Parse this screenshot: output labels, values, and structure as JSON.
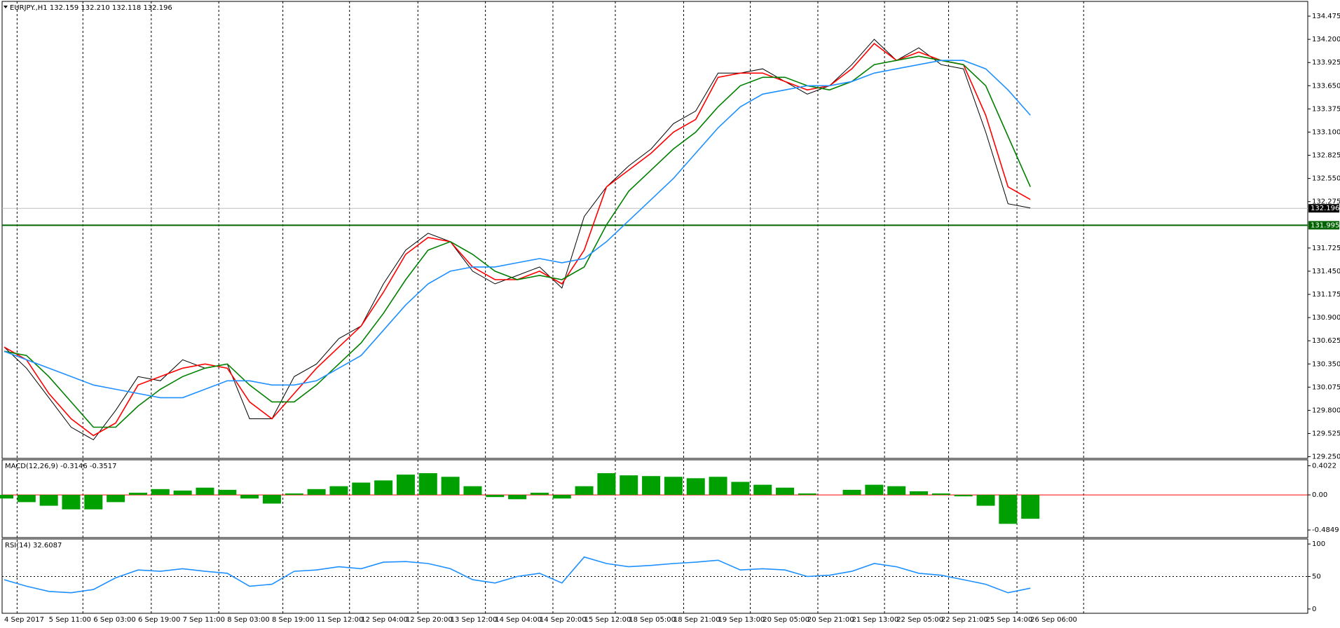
{
  "chart_data": [
    {
      "type": "line",
      "title": "EURJPY.,H1 132.159 132.210 132.118 132.196",
      "categories": [
        "4 Sep 2017",
        null,
        "5 Sep 11:00",
        null,
        "6 Sep 03:00",
        null,
        "6 Sep 19:00",
        null,
        "7 Sep 11:00",
        null,
        "8 Sep 03:00",
        null,
        "8 Sep 19:00",
        null,
        "11 Sep 12:00",
        null,
        "12 Sep 04:00",
        null,
        "12 Sep 20:00",
        null,
        "13 Sep 12:00",
        null,
        "14 Sep 04:00",
        null,
        "14 Sep 20:00",
        null,
        "15 Sep 12:00",
        null,
        "18 Sep 05:00",
        null,
        "18 Sep 21:00",
        null,
        "19 Sep 13:00",
        null,
        "20 Sep 05:00",
        null,
        "20 Sep 21:00",
        null,
        "21 Sep 13:00",
        null,
        "22 Sep 05:00",
        null,
        "22 Sep 21:00",
        null,
        "25 Sep 14:00",
        null,
        "26 Sep 06:00"
      ],
      "series": [
        {
          "color": "#000000",
          "values": [
            130.55,
            130.3,
            129.95,
            129.6,
            129.45,
            129.8,
            130.2,
            130.15,
            130.4,
            130.3,
            130.35,
            129.7,
            129.7,
            130.2,
            130.35,
            130.65,
            130.8,
            131.3,
            131.7,
            131.9,
            131.8,
            131.45,
            131.3,
            131.4,
            131.5,
            131.25,
            132.1,
            132.45,
            132.7,
            132.9,
            133.2,
            133.35,
            133.8,
            133.8,
            133.85,
            133.7,
            133.55,
            133.65,
            133.9,
            134.2,
            133.95,
            134.1,
            133.9,
            133.85,
            133.1,
            132.25,
            132.2
          ]
        },
        {
          "color": "#ff0000",
          "values": [
            130.55,
            130.4,
            130.0,
            129.7,
            129.5,
            129.65,
            130.1,
            130.2,
            130.3,
            130.35,
            130.3,
            129.9,
            129.7,
            130.0,
            130.3,
            130.55,
            130.8,
            131.2,
            131.65,
            131.85,
            131.8,
            131.5,
            131.35,
            131.35,
            131.45,
            131.3,
            131.7,
            132.45,
            132.65,
            132.85,
            133.1,
            133.25,
            133.75,
            133.8,
            133.8,
            133.7,
            133.6,
            133.65,
            133.85,
            134.15,
            133.95,
            134.05,
            133.95,
            133.9,
            133.3,
            132.45,
            132.3
          ]
        },
        {
          "color": "#008000",
          "values": [
            130.5,
            130.45,
            130.2,
            129.9,
            129.6,
            129.6,
            129.85,
            130.05,
            130.2,
            130.3,
            130.35,
            130.1,
            129.9,
            129.9,
            130.1,
            130.35,
            130.6,
            130.95,
            131.35,
            131.7,
            131.8,
            131.65,
            131.45,
            131.35,
            131.4,
            131.35,
            131.5,
            132.0,
            132.4,
            132.65,
            132.9,
            133.1,
            133.4,
            133.65,
            133.75,
            133.75,
            133.65,
            133.6,
            133.7,
            133.9,
            133.95,
            134.0,
            133.95,
            133.9,
            133.65,
            133.05,
            132.45
          ]
        },
        {
          "color": "#1e90ff",
          "values": [
            130.5,
            130.4,
            130.3,
            130.2,
            130.1,
            130.05,
            130.0,
            129.95,
            129.95,
            130.05,
            130.15,
            130.15,
            130.1,
            130.1,
            130.15,
            130.3,
            130.45,
            130.75,
            131.05,
            131.3,
            131.45,
            131.5,
            131.5,
            131.55,
            131.6,
            131.55,
            131.6,
            131.8,
            132.05,
            132.3,
            132.55,
            132.85,
            133.15,
            133.4,
            133.55,
            133.6,
            133.65,
            133.65,
            133.7,
            133.8,
            133.85,
            133.9,
            133.95,
            133.95,
            133.85,
            133.6,
            133.3
          ]
        }
      ],
      "ylim": [
        129.23,
        134.65
      ],
      "yticks": [
        {
          "value": 129.25,
          "label": "129.250"
        },
        129.525,
        {
          "value": 129.8,
          "label": "129.800"
        },
        130.075,
        {
          "value": 130.35,
          "label": "130.350"
        },
        130.625,
        {
          "value": 130.9,
          "label": "130.900"
        },
        131.175,
        {
          "value": 131.45,
          "label": "131.450"
        },
        131.725,
        132.275,
        {
          "value": 132.55,
          "label": "132.550"
        },
        132.825,
        {
          "value": 133.1,
          "label": "133.100"
        },
        133.375,
        {
          "value": 133.65,
          "label": "133.650"
        },
        133.925,
        {
          "value": 134.2,
          "label": "134.200"
        },
        134.475
      ],
      "levels": [
        {
          "value": 132.196,
          "color": "#c0c0c0",
          "label_color": "#000000",
          "labeled": true
        },
        {
          "value": 131.995,
          "color": "#006400",
          "label_color": "#006400",
          "labeled": true
        }
      ]
    },
    {
      "type": "bar",
      "title": "MACD(12,26,9) -0.3146 -0.3517",
      "color": "#00a000",
      "values": [
        -0.05,
        -0.1,
        -0.15,
        -0.2,
        -0.2,
        -0.1,
        0.03,
        0.08,
        0.06,
        0.1,
        0.07,
        -0.05,
        -0.12,
        0.02,
        0.08,
        0.12,
        0.17,
        0.2,
        0.28,
        0.3,
        0.25,
        0.12,
        -0.03,
        -0.06,
        0.03,
        -0.05,
        0.12,
        0.3,
        0.27,
        0.26,
        0.25,
        0.23,
        0.25,
        0.18,
        0.14,
        0.1,
        0.02,
        0.0,
        0.07,
        0.14,
        0.12,
        0.05,
        0.02,
        -0.02,
        -0.15,
        -0.4,
        -0.33
      ],
      "ylim": [
        -0.59,
        0.485
      ],
      "yticks": [
        -0.4849,
        {
          "value": 0,
          "label": "0.00"
        },
        0.4022
      ],
      "levels": [
        {
          "value": 0,
          "color": "#ff0000",
          "labeled": false
        }
      ]
    },
    {
      "type": "line",
      "title": "RSI(14) 32.6087",
      "series": [
        {
          "color": "#1e90ff",
          "values": [
            45,
            35,
            27,
            25,
            30,
            48,
            60,
            58,
            62,
            58,
            55,
            35,
            38,
            58,
            60,
            65,
            62,
            72,
            73,
            70,
            62,
            45,
            40,
            50,
            55,
            40,
            80,
            70,
            65,
            67,
            70,
            72,
            75,
            60,
            62,
            60,
            50,
            52,
            58,
            70,
            65,
            55,
            52,
            45,
            38,
            25,
            32
          ]
        }
      ],
      "ylim": [
        -6.6,
        107.7
      ],
      "yticks": [
        0,
        50,
        100
      ],
      "levels": [
        {
          "value": 50,
          "color": "#000000",
          "labeled": false,
          "dashed": true
        }
      ]
    }
  ]
}
